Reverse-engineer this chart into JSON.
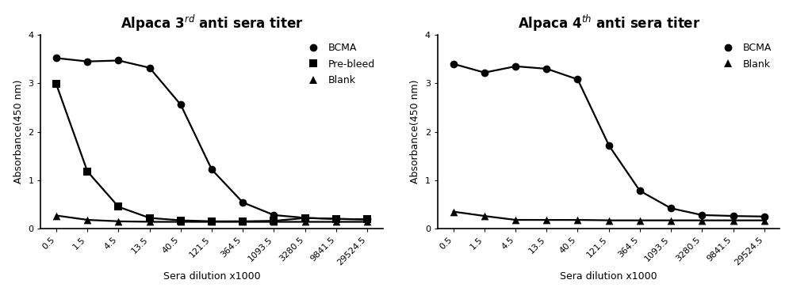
{
  "plot1": {
    "title": "Alpaca 3$^{rd}$ anti sera titer",
    "xlabel": "Sera dilution x1000",
    "ylabel": "Absorbance(450 nm)",
    "ylim": [
      0,
      4
    ],
    "yticks": [
      0,
      1,
      2,
      3,
      4
    ],
    "xtick_labels": [
      "0.5",
      "1.5",
      "4.5",
      "13.5",
      "40.5",
      "121.5",
      "364.5",
      "1093.5",
      "3280.5",
      "9841.5",
      "29524.5"
    ],
    "x_vals": [
      0.5,
      1.5,
      4.5,
      13.5,
      40.5,
      121.5,
      364.5,
      1093.5,
      3280.5,
      9841.5,
      29524.5
    ],
    "bcma_y": [
      3.52,
      3.45,
      3.47,
      3.32,
      2.56,
      1.22,
      0.54,
      0.28,
      0.22,
      0.2,
      0.19
    ],
    "prebleed_y": [
      2.98,
      1.18,
      0.45,
      0.22,
      0.17,
      0.15,
      0.15,
      0.16,
      0.22,
      0.2,
      0.19
    ],
    "blank_y": [
      0.27,
      0.18,
      0.15,
      0.14,
      0.14,
      0.14,
      0.14,
      0.14,
      0.14,
      0.14,
      0.14
    ],
    "legend_labels": [
      "BCMA",
      "Pre-bleed",
      "Blank"
    ],
    "legend_markers": [
      "o",
      "s",
      "^"
    ]
  },
  "plot2": {
    "title": "Alpaca 4$^{th}$ anti sera titer",
    "xlabel": "Sera dilution x1000",
    "ylabel": "Absorbance(450 nm)",
    "ylim": [
      0,
      4
    ],
    "yticks": [
      0,
      1,
      2,
      3,
      4
    ],
    "xtick_labels": [
      "0.5",
      "1.5",
      "4.5",
      "13.5",
      "40.5",
      "121.5",
      "364.5",
      "1093.5",
      "3280.5",
      "9841.5",
      "29524.5"
    ],
    "x_vals": [
      0.5,
      1.5,
      4.5,
      13.5,
      40.5,
      121.5,
      364.5,
      1093.5,
      3280.5,
      9841.5,
      29524.5
    ],
    "bcma_y": [
      3.4,
      3.22,
      3.35,
      3.3,
      3.08,
      1.72,
      0.78,
      0.42,
      0.28,
      0.26,
      0.25
    ],
    "blank_y": [
      0.35,
      0.26,
      0.18,
      0.18,
      0.18,
      0.17,
      0.17,
      0.17,
      0.17,
      0.17,
      0.17
    ],
    "legend_labels": [
      "BCMA",
      "Blank"
    ],
    "legend_markers": [
      "o",
      "^"
    ]
  },
  "line_color": "#000000",
  "marker_color": "#000000",
  "marker_size": 7,
  "line_width": 1.6,
  "font_size_title": 12,
  "font_size_axis": 9,
  "font_size_tick": 8,
  "font_size_legend": 9
}
